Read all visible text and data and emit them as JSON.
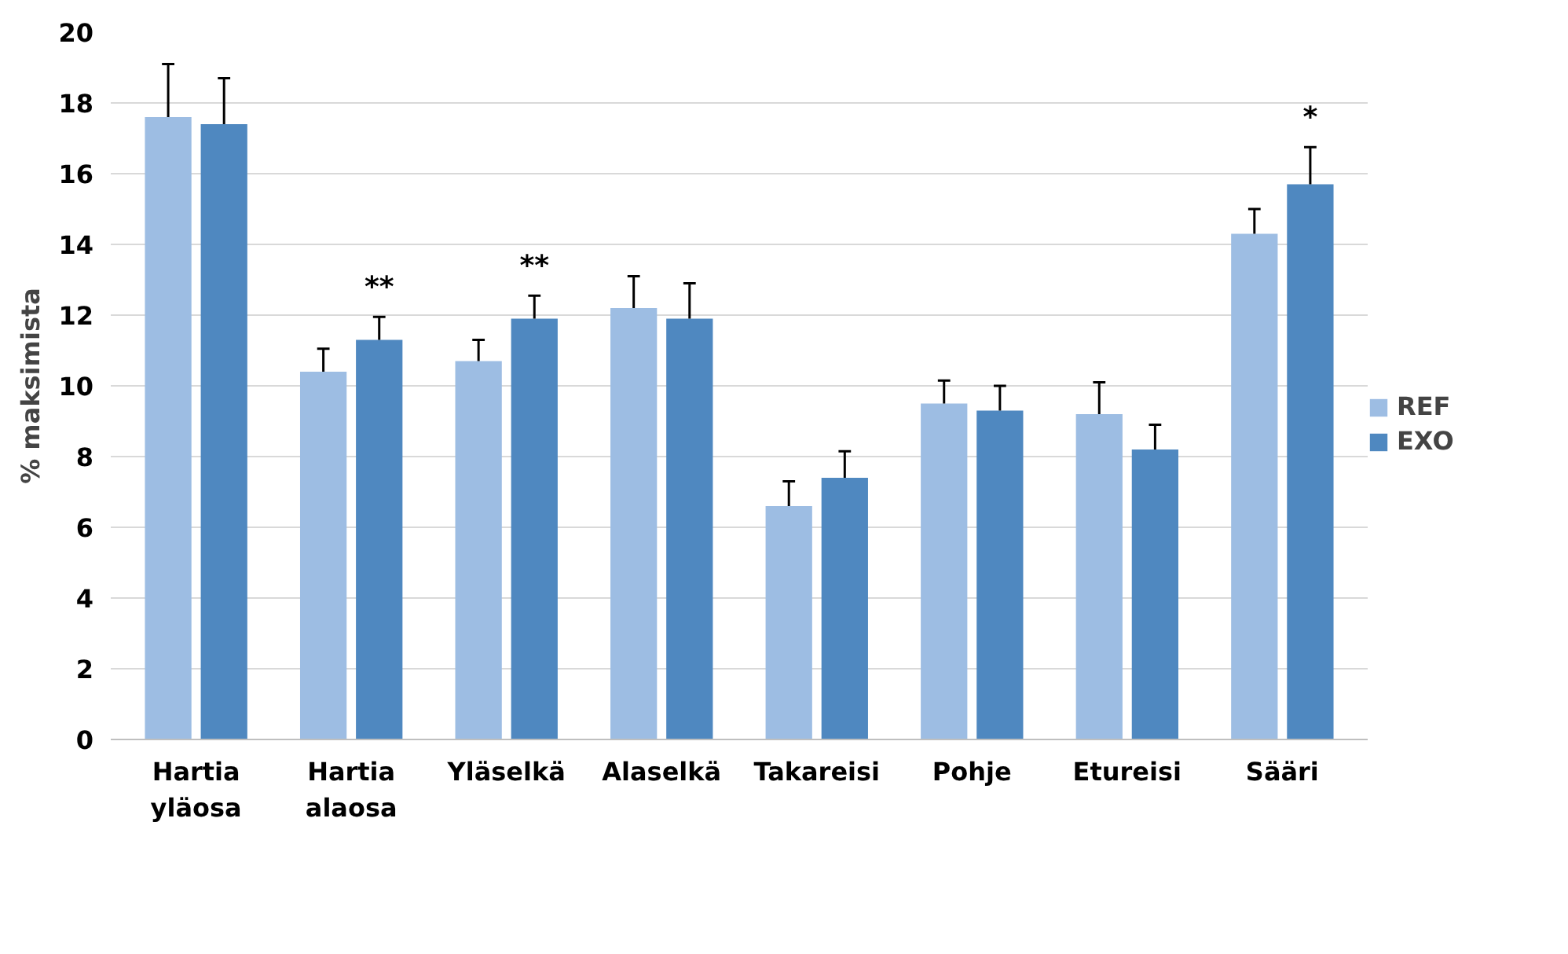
{
  "chart_data": {
    "type": "bar",
    "ylabel": "% maksimista",
    "categories": [
      "Hartia yläosa",
      "Hartia alaosa",
      "Yläselkä",
      "Alaselkä",
      "Takareisi",
      "Pohje",
      "Etureisi",
      "Sääri"
    ],
    "series": [
      {
        "name": "REF",
        "color": "#9dbde3",
        "values": [
          17.6,
          10.4,
          10.7,
          12.2,
          6.6,
          9.5,
          9.2,
          14.3
        ],
        "errors": [
          1.5,
          0.65,
          0.6,
          0.9,
          0.7,
          0.65,
          0.9,
          0.7
        ]
      },
      {
        "name": "EXO",
        "color": "#4f88c0",
        "values": [
          17.4,
          11.3,
          11.9,
          11.9,
          7.4,
          9.3,
          8.2,
          15.7
        ],
        "errors": [
          1.3,
          0.65,
          0.65,
          1.0,
          0.75,
          0.7,
          0.7,
          1.05
        ]
      }
    ],
    "ylim": [
      0,
      20
    ],
    "yticks": [
      0,
      2,
      4,
      6,
      8,
      10,
      12,
      14,
      16,
      18,
      20
    ],
    "grid": "y",
    "legend": "right",
    "annotations": [
      {
        "text": "**",
        "x": "Hartia alaosa",
        "y": 11.3
      },
      {
        "text": "**",
        "x": "Yläselkä",
        "y": 11.9
      },
      {
        "text": "*",
        "x": "Sääri",
        "y": 15.7
      }
    ]
  }
}
